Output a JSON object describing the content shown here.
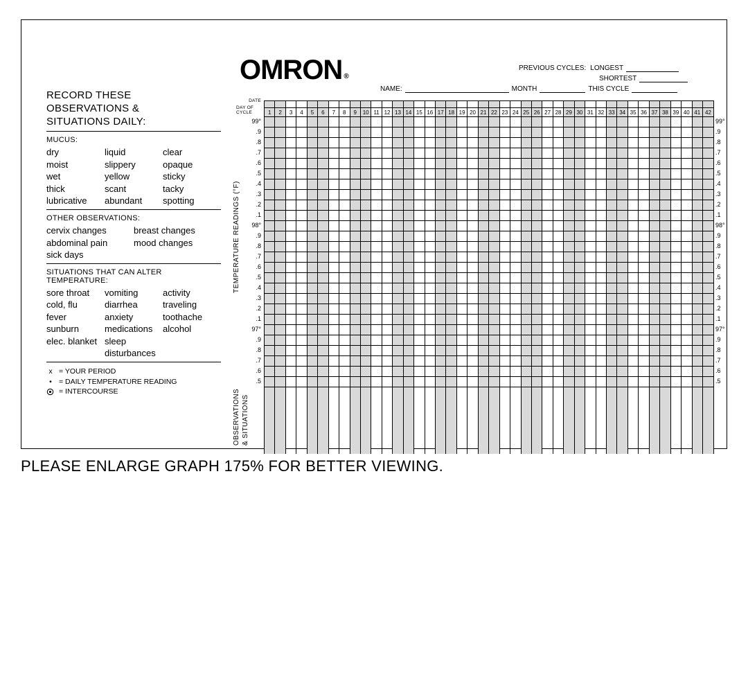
{
  "logo": {
    "text": "OMRON",
    "registered": "®"
  },
  "header": {
    "name_label": "NAME:",
    "previous_label": "PREVIOUS CYCLES:",
    "longest_label": "LONGEST",
    "shortest_label": "SHORTEST",
    "month_label": "MONTH",
    "thiscycle_label": "THIS CYCLE"
  },
  "sidebar": {
    "title_l1": "RECORD THESE",
    "title_l2": "OBSERVATIONS &",
    "title_l3": "SITUATIONS DAILY:",
    "mucus_title": "MUCUS:",
    "mucus": {
      "c1": [
        "dry",
        "moist",
        "wet",
        "thick",
        "lubricative"
      ],
      "c2": [
        "liquid",
        "slippery",
        "yellow",
        "scant",
        "abundant"
      ],
      "c3": [
        "clear",
        "opaque",
        "sticky",
        "tacky",
        "spotting"
      ]
    },
    "other_title": "OTHER OBSERVATIONS:",
    "other": {
      "c1": [
        "cervix changes",
        "abdominal pain",
        "sick days"
      ],
      "c2": [
        "breast changes",
        "mood changes",
        ""
      ]
    },
    "sit_title_l1": "SITUATIONS THAT CAN ALTER",
    "sit_title_l2": "TEMPERATURE:",
    "situations": {
      "c1": [
        "sore throat",
        "cold, flu",
        "fever",
        "sunburn",
        "elec. blanket"
      ],
      "c2": [
        "vomiting",
        "diarrhea",
        "anxiety",
        "medications",
        "sleep disturbances"
      ],
      "c3": [
        "activity",
        "traveling",
        "toothache",
        "alcohol",
        ""
      ]
    },
    "legend": {
      "x": "x",
      "x_label": "= YOUR PERIOD",
      "dot_label": "= DAILY TEMPERATURE READING",
      "circ_label": "= INTERCOURSE"
    }
  },
  "chart": {
    "date_label": "DATE",
    "doc_label": "DAY OF CYCLE",
    "days": 42,
    "y_title": "TEMPERATURE READINGS (°F)",
    "obs_title_a": "OBSERVATIONS",
    "obs_title_b": "& SITUATIONS",
    "y_labels": [
      "99°",
      ".9",
      ".8",
      ".7",
      ".6",
      ".5",
      ".4",
      ".3",
      ".2",
      ".1",
      "98°",
      ".9",
      ".8",
      ".7",
      ".6",
      ".5",
      ".4",
      ".3",
      ".2",
      ".1",
      "97°",
      ".9",
      ".8",
      ".7",
      ".6",
      ".5"
    ],
    "shaded_pairs_start": [
      1,
      5,
      9,
      13,
      17,
      21,
      25,
      29,
      33,
      37,
      41
    ],
    "heavy_after_rows": [
      5,
      10,
      15,
      20,
      25
    ],
    "obs_rows": 6,
    "colors": {
      "shade": "#d9d9d9",
      "line": "#000000",
      "bg": "#ffffff"
    }
  },
  "footer": "PLEASE ENLARGE GRAPH 175% FOR BETTER VIEWING."
}
